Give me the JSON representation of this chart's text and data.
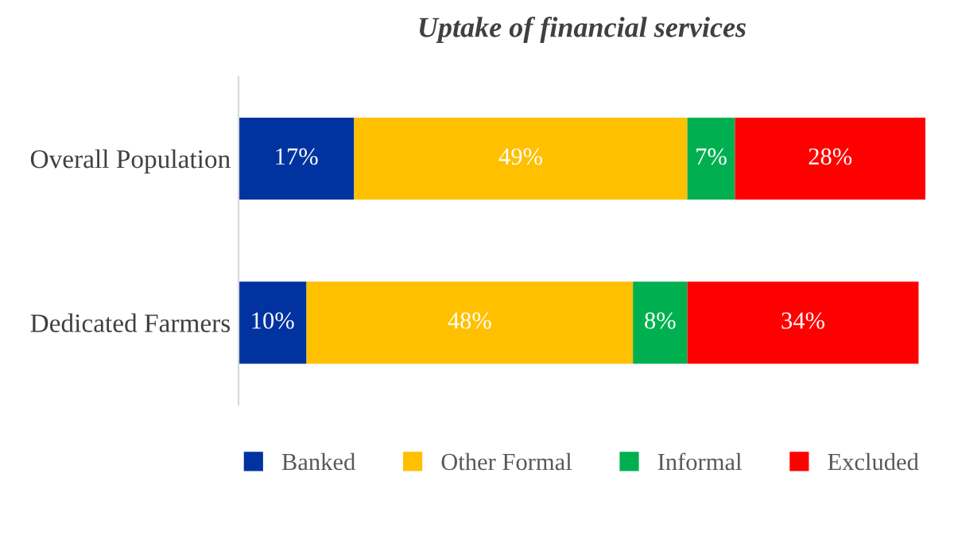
{
  "chart_data": {
    "type": "bar",
    "orientation": "horizontal",
    "stacked": true,
    "title": "Uptake of financial services",
    "categories": [
      "Overall Population",
      "Dedicated Farmers"
    ],
    "series": [
      {
        "name": "Banked",
        "color": "#0033a0",
        "values": [
          17,
          10
        ],
        "value_labels": [
          "17%",
          "10%"
        ]
      },
      {
        "name": "Other Formal",
        "color": "#ffc000",
        "values": [
          49,
          48
        ],
        "value_labels": [
          "49%",
          "48%"
        ]
      },
      {
        "name": "Informal",
        "color": "#00b050",
        "values": [
          7,
          8
        ],
        "value_labels": [
          "7%",
          "8%"
        ]
      },
      {
        "name": "Excluded",
        "color": "#ff0000",
        "values": [
          28,
          34
        ],
        "value_labels": [
          "28%",
          "34%"
        ]
      }
    ],
    "legend": "bottom",
    "grid": false,
    "tick_labels": "y"
  }
}
